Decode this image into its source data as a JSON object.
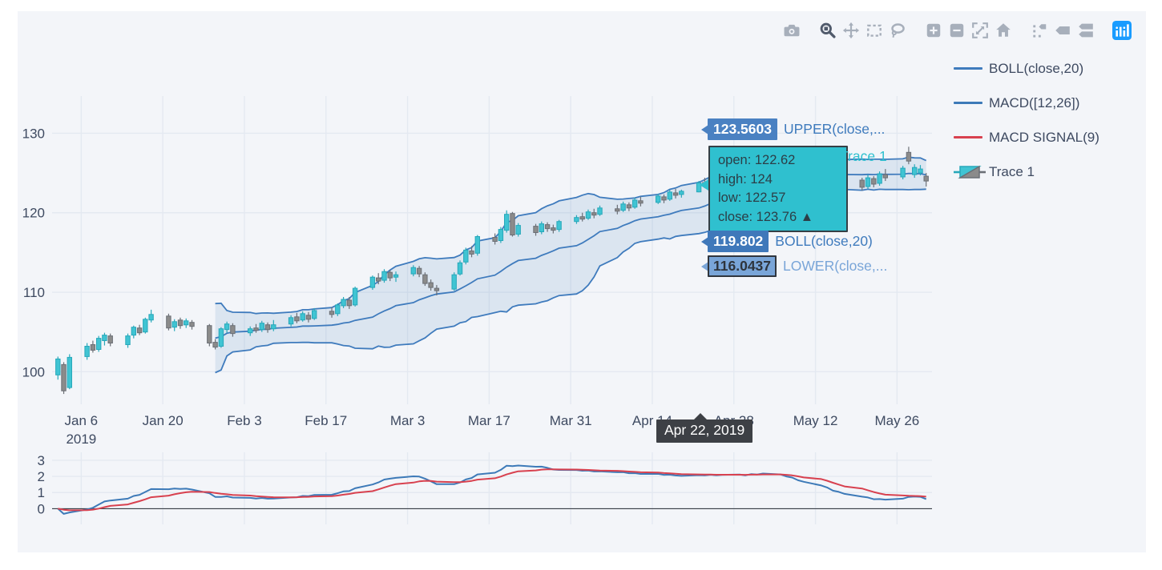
{
  "colors": {
    "paper_bg": "#f3f5f9",
    "grid": "#e4e9f1",
    "axis_text": "#3e4a61",
    "zero_line": "#3a3f47",
    "boll_line": "#3f7bbd",
    "band_fill": "rgba(63,123,189,0.13)",
    "macd_line": "#3d7ab8",
    "signal_line": "#d8414f",
    "candle_up_fill": "#40c4d3",
    "candle_up_line": "#27a8ba",
    "candle_down_fill": "#8b8b8b",
    "candle_down_line": "#6b6f76",
    "modebar_icon": "#a7afbb",
    "modebar_active": "#505a6b",
    "plotly_logo": "#1a9cff"
  },
  "modebar": {
    "active_button": "zoom",
    "icons": [
      "camera",
      "zoom",
      "pan",
      "box-select",
      "lasso",
      "zoom-in",
      "zoom-out",
      "autoscale",
      "reset-axes",
      "spike-lines",
      "hover-closest",
      "hover-compare",
      "plotly-logo"
    ]
  },
  "legend": {
    "items": [
      {
        "label": "BOLL(close,20)",
        "type": "line",
        "color": "#3f7bbd"
      },
      {
        "label": "MACD([12,26])",
        "type": "line",
        "color": "#3d7ab8"
      },
      {
        "label": "MACD SIGNAL(9)",
        "type": "line",
        "color": "#d8414f"
      },
      {
        "label": "Trace 1",
        "type": "candlestick",
        "color": "#40c4d3"
      }
    ]
  },
  "hover": {
    "date_label": "Apr 22, 2019",
    "date_bg": "#3d4045",
    "date_fg": "#ffffff",
    "x_date": "2019-04-22",
    "labels": [
      {
        "value": "123.5603",
        "name": "UPPER(close,...",
        "bg": "#4a81c2",
        "fg": "#ffffff",
        "name_color": "#3f7bbd"
      },
      {
        "value": "119.802",
        "name": "BOLL(close,20)",
        "bg": "#3f78ba",
        "fg": "#ffffff",
        "name_color": "#3f7bbd"
      },
      {
        "value": "116.0437",
        "name": "LOWER(close,...",
        "bg": "#79a5d8",
        "fg": "#2e343c",
        "name_color": "#79a5d8",
        "border": "#30363e"
      }
    ],
    "trace": {
      "name": "Trace 1",
      "bg": "#2fc0cf",
      "fg": "#2c3e47",
      "border": "#353f45",
      "name_color": "#2fc0cf",
      "lines": [
        "open: 122.62",
        "high: 124",
        "low: 122.57",
        "close: 123.76  ▲"
      ]
    }
  },
  "chart_data": {
    "type": "candlestick",
    "title": "",
    "xlabel": "",
    "ylabel": "",
    "x_range": [
      "2019-01-01",
      "2019-06-01"
    ],
    "ylim_main": [
      95.9,
      134.68
    ],
    "ylim_macd": [
      -0.97,
      3.49
    ],
    "y_ticks_main": [
      100,
      110,
      120,
      130
    ],
    "y_ticks_macd": [
      0,
      1,
      2,
      3
    ],
    "x_ticks": [
      {
        "date": "2019-01-06",
        "label": "Jan 6",
        "sub": "2019"
      },
      {
        "date": "2019-01-20",
        "label": "Jan 20"
      },
      {
        "date": "2019-02-03",
        "label": "Feb 3"
      },
      {
        "date": "2019-02-17",
        "label": "Feb 17"
      },
      {
        "date": "2019-03-03",
        "label": "Mar 3"
      },
      {
        "date": "2019-03-17",
        "label": "Mar 17"
      },
      {
        "date": "2019-03-31",
        "label": "Mar 31"
      },
      {
        "date": "2019-04-14",
        "label": "Apr 14"
      },
      {
        "date": "2019-04-28",
        "label": "Apr 28"
      },
      {
        "date": "2019-05-12",
        "label": "May 12"
      },
      {
        "date": "2019-05-26",
        "label": "May 26"
      }
    ],
    "indicators": {
      "boll_period": 20,
      "boll_std": 2,
      "macd_fast": 12,
      "macd_slow": 26,
      "macd_signal": 9
    },
    "ohlc_fields": [
      "date",
      "open",
      "high",
      "low",
      "close"
    ],
    "ohlc": [
      [
        "2019-01-02",
        99.6,
        101.9,
        99.0,
        101.6
      ],
      [
        "2019-01-03",
        100.9,
        101.2,
        97.2,
        97.6
      ],
      [
        "2019-01-04",
        98.0,
        102.2,
        97.8,
        101.8
      ],
      [
        "2019-01-07",
        101.9,
        103.6,
        101.5,
        103.2
      ],
      [
        "2019-01-08",
        103.4,
        103.9,
        102.4,
        102.7
      ],
      [
        "2019-01-09",
        102.8,
        104.5,
        102.5,
        104.2
      ],
      [
        "2019-01-10",
        103.9,
        104.9,
        103.3,
        104.6
      ],
      [
        "2019-01-11",
        104.5,
        104.8,
        103.2,
        103.6
      ],
      [
        "2019-01-14",
        103.4,
        104.8,
        103.0,
        104.5
      ],
      [
        "2019-01-15",
        104.6,
        105.8,
        104.2,
        105.6
      ],
      [
        "2019-01-16",
        105.5,
        105.9,
        104.6,
        104.9
      ],
      [
        "2019-01-17",
        105.0,
        106.8,
        104.8,
        106.6
      ],
      [
        "2019-01-18",
        106.5,
        107.8,
        106.2,
        107.2
      ],
      [
        "2019-01-21",
        107.0,
        107.3,
        105.2,
        105.5
      ],
      [
        "2019-01-22",
        105.6,
        106.6,
        105.1,
        106.3
      ],
      [
        "2019-01-23",
        106.5,
        106.8,
        105.4,
        105.8
      ],
      [
        "2019-01-24",
        105.9,
        106.7,
        105.5,
        106.4
      ],
      [
        "2019-01-25",
        106.2,
        106.5,
        105.3,
        105.7
      ],
      [
        "2019-01-28",
        105.8,
        106.0,
        103.2,
        103.6
      ],
      [
        "2019-01-29",
        103.7,
        104.1,
        102.8,
        103.1
      ],
      [
        "2019-01-30",
        103.2,
        105.6,
        103.0,
        105.4
      ],
      [
        "2019-01-31",
        105.3,
        106.3,
        104.9,
        106.0
      ],
      [
        "2019-02-01",
        105.8,
        106.1,
        104.4,
        104.8
      ],
      [
        "2019-02-04",
        104.9,
        105.7,
        104.5,
        105.4
      ],
      [
        "2019-02-05",
        105.5,
        106.0,
        104.9,
        105.2
      ],
      [
        "2019-02-06",
        105.3,
        106.4,
        105.0,
        106.1
      ],
      [
        "2019-02-07",
        105.9,
        106.2,
        104.9,
        105.3
      ],
      [
        "2019-02-08",
        105.4,
        106.5,
        105.1,
        105.9
      ],
      [
        "2019-02-11",
        106.0,
        107.1,
        105.7,
        106.8
      ],
      [
        "2019-02-12",
        106.9,
        107.4,
        106.1,
        106.4
      ],
      [
        "2019-02-13",
        106.5,
        107.6,
        106.3,
        107.3
      ],
      [
        "2019-02-14",
        107.1,
        107.5,
        106.2,
        106.6
      ],
      [
        "2019-02-15",
        106.7,
        108.0,
        106.5,
        107.7
      ],
      [
        "2019-02-18",
        107.6,
        108.1,
        106.8,
        107.2
      ],
      [
        "2019-02-19",
        107.3,
        108.6,
        107.0,
        108.4
      ],
      [
        "2019-02-20",
        108.3,
        109.4,
        108.0,
        109.1
      ],
      [
        "2019-02-21",
        109.0,
        109.4,
        107.9,
        108.3
      ],
      [
        "2019-02-22",
        108.4,
        110.7,
        108.2,
        110.5
      ],
      [
        "2019-02-25",
        110.6,
        112.1,
        110.3,
        111.9
      ],
      [
        "2019-02-26",
        111.8,
        112.4,
        111.0,
        111.4
      ],
      [
        "2019-02-27",
        111.5,
        112.9,
        111.2,
        112.6
      ],
      [
        "2019-02-28",
        112.5,
        112.8,
        111.4,
        111.8
      ],
      [
        "2019-03-01",
        111.9,
        112.6,
        111.3,
        112.2
      ],
      [
        "2019-03-04",
        112.3,
        113.4,
        112.0,
        113.1
      ],
      [
        "2019-03-05",
        113.0,
        113.3,
        111.9,
        112.3
      ],
      [
        "2019-03-06",
        112.2,
        112.5,
        110.8,
        111.1
      ],
      [
        "2019-03-07",
        111.2,
        111.6,
        110.2,
        110.6
      ],
      [
        "2019-03-08",
        110.5,
        110.9,
        109.6,
        110.2
      ],
      [
        "2019-03-11",
        110.4,
        112.5,
        110.2,
        112.2
      ],
      [
        "2019-03-12",
        112.3,
        114.0,
        112.1,
        113.7
      ],
      [
        "2019-03-13",
        113.8,
        115.6,
        113.5,
        115.3
      ],
      [
        "2019-03-14",
        115.2,
        115.8,
        114.4,
        114.8
      ],
      [
        "2019-03-15",
        114.9,
        117.2,
        114.6,
        117.0
      ],
      [
        "2019-03-18",
        116.9,
        117.4,
        116.0,
        116.4
      ],
      [
        "2019-03-19",
        116.5,
        118.2,
        116.2,
        117.9
      ],
      [
        "2019-03-20",
        117.8,
        120.3,
        117.5,
        119.8
      ],
      [
        "2019-03-21",
        119.9,
        120.1,
        117.0,
        117.2
      ],
      [
        "2019-03-22",
        117.3,
        118.7,
        117.0,
        118.4
      ],
      [
        "2019-03-25",
        118.3,
        118.6,
        117.1,
        117.5
      ],
      [
        "2019-03-26",
        117.6,
        118.9,
        117.3,
        118.6
      ],
      [
        "2019-03-27",
        118.5,
        118.8,
        117.6,
        118.0
      ],
      [
        "2019-03-28",
        118.1,
        118.5,
        117.4,
        117.8
      ],
      [
        "2019-03-29",
        117.9,
        119.1,
        117.6,
        118.9
      ],
      [
        "2019-04-01",
        118.9,
        119.7,
        118.6,
        119.4
      ],
      [
        "2019-04-02",
        119.5,
        120.0,
        118.9,
        119.2
      ],
      [
        "2019-04-03",
        119.3,
        120.4,
        119.1,
        120.1
      ],
      [
        "2019-04-04",
        120.0,
        120.5,
        119.3,
        119.7
      ],
      [
        "2019-04-05",
        119.8,
        120.9,
        119.6,
        120.6
      ],
      [
        "2019-04-08",
        120.5,
        121.0,
        119.8,
        120.2
      ],
      [
        "2019-04-09",
        120.3,
        121.4,
        120.1,
        121.1
      ],
      [
        "2019-04-10",
        121.0,
        121.3,
        120.2,
        120.6
      ],
      [
        "2019-04-11",
        120.7,
        121.9,
        120.5,
        121.6
      ],
      [
        "2019-04-12",
        121.5,
        122.0,
        120.8,
        121.2
      ],
      [
        "2019-04-15",
        121.3,
        122.4,
        121.1,
        122.1
      ],
      [
        "2019-04-16",
        122.0,
        122.3,
        121.2,
        121.6
      ],
      [
        "2019-04-17",
        121.7,
        122.9,
        121.5,
        122.6
      ],
      [
        "2019-04-18",
        122.5,
        123.0,
        121.8,
        122.2
      ],
      [
        "2019-04-19",
        122.3,
        122.9,
        121.9,
        122.7
      ],
      [
        "2019-04-22",
        122.62,
        124.0,
        122.57,
        123.76
      ],
      [
        "2019-04-23",
        123.8,
        124.4,
        123.1,
        123.5
      ],
      [
        "2019-04-24",
        123.6,
        124.6,
        123.3,
        124.3
      ],
      [
        "2019-04-25",
        124.2,
        124.8,
        123.5,
        123.9
      ],
      [
        "2019-04-26",
        124.0,
        125.1,
        123.8,
        124.8
      ],
      [
        "2019-04-29",
        124.7,
        125.4,
        124.3,
        125.1
      ],
      [
        "2019-04-30",
        125.0,
        125.3,
        124.2,
        124.6
      ],
      [
        "2019-05-01",
        124.9,
        126.6,
        124.6,
        126.3
      ],
      [
        "2019-05-02",
        126.2,
        126.6,
        125.2,
        125.6
      ],
      [
        "2019-05-03",
        125.7,
        127.2,
        125.4,
        126.9
      ],
      [
        "2019-05-06",
        126.7,
        127.1,
        125.5,
        125.9
      ],
      [
        "2019-05-07",
        126.0,
        126.4,
        124.8,
        125.2
      ],
      [
        "2019-05-08",
        125.3,
        126.1,
        124.9,
        125.8
      ],
      [
        "2019-05-09",
        125.7,
        126.0,
        124.3,
        124.7
      ],
      [
        "2019-05-10",
        124.8,
        125.7,
        124.4,
        125.4
      ],
      [
        "2019-05-13",
        125.2,
        125.5,
        123.3,
        123.7
      ],
      [
        "2019-05-14",
        123.8,
        124.9,
        123.4,
        124.6
      ],
      [
        "2019-05-15",
        124.5,
        124.8,
        123.1,
        123.5
      ],
      [
        "2019-05-16",
        123.6,
        125.0,
        123.3,
        124.7
      ],
      [
        "2019-05-17",
        124.6,
        125.1,
        123.6,
        124.0
      ],
      [
        "2019-05-20",
        124.1,
        124.4,
        122.8,
        123.2
      ],
      [
        "2019-05-21",
        123.3,
        124.8,
        123.0,
        124.4
      ],
      [
        "2019-05-22",
        124.3,
        124.6,
        123.2,
        123.6
      ],
      [
        "2019-05-23",
        123.7,
        125.2,
        123.4,
        124.9
      ],
      [
        "2019-05-24",
        124.8,
        125.5,
        124.0,
        124.4
      ],
      [
        "2019-05-27",
        124.5,
        125.9,
        124.2,
        125.6
      ],
      [
        "2019-05-28",
        127.6,
        128.3,
        126.1,
        126.5
      ],
      [
        "2019-05-29",
        124.8,
        126.1,
        124.4,
        125.7
      ],
      [
        "2019-05-30",
        125.0,
        126.0,
        124.7,
        125.5
      ],
      [
        "2019-05-31",
        124.6,
        125.0,
        123.3,
        124.0
      ]
    ]
  }
}
